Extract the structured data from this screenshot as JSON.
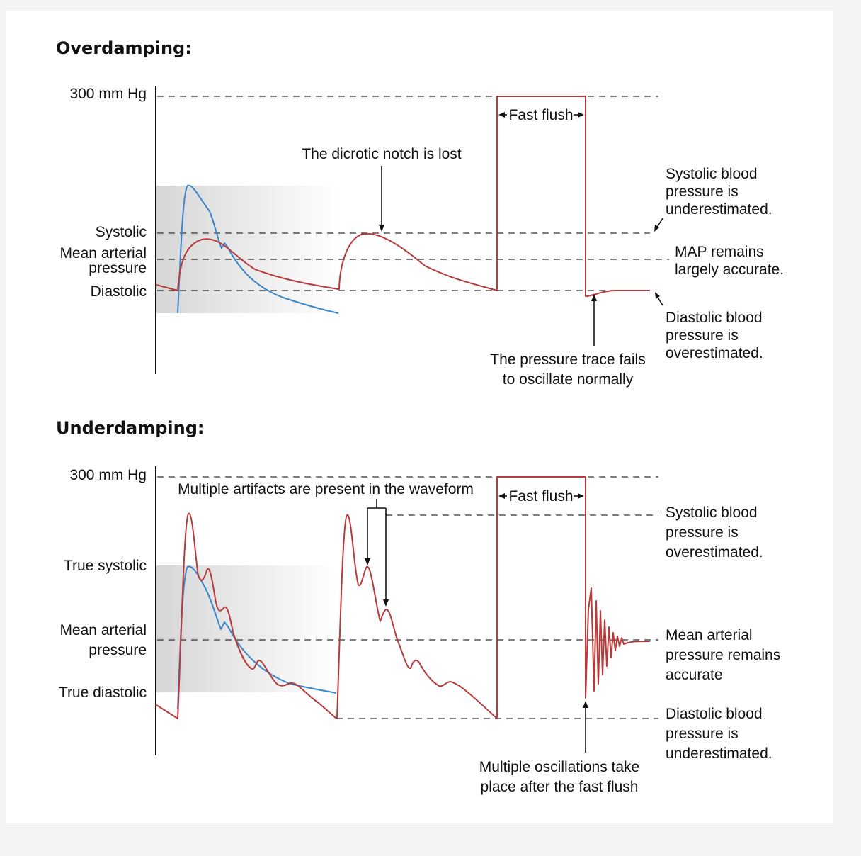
{
  "colors": {
    "damped_trace": "#b83a3a",
    "normal_trace": "#3a86c8",
    "background": "#f4f4f4",
    "band_shade": "#d8d8d8"
  },
  "overdamping": {
    "heading": "Overdamping:",
    "axis_labels": {
      "top": "300 mm Hg",
      "systolic": "Systolic",
      "map_line1": "Mean arterial",
      "map_line2": "pressure",
      "diastolic": "Diastolic"
    },
    "notes": {
      "notch": "The dicrotic notch is lost",
      "flush": "Fast flush",
      "systolic": [
        "Systolic blood",
        "pressure is",
        "underestimated."
      ],
      "map": [
        "MAP remains",
        "largely accurate."
      ],
      "diastolic": [
        "Diastolic blood",
        "pressure is",
        "overestimated."
      ],
      "trace": [
        "The pressure trace fails",
        "to oscillate normally"
      ]
    }
  },
  "underdamping": {
    "heading": "Underdamping:",
    "axis_labels": {
      "top": "300 mm Hg",
      "systolic": "True systolic",
      "map_line1": "Mean arterial",
      "map_line2": "pressure",
      "diastolic": "True diastolic"
    },
    "notes": {
      "artifacts": "Multiple artifacts are present in the waveform",
      "flush": "Fast flush",
      "systolic": [
        "Systolic blood",
        "pressure is",
        "overestimated."
      ],
      "map": [
        "Mean arterial",
        "pressure remains",
        "accurate"
      ],
      "diastolic": [
        "Diastolic blood",
        "pressure is",
        "underestimated."
      ],
      "oscillations": [
        "Multiple oscillations take",
        "place after the fast flush"
      ]
    }
  }
}
